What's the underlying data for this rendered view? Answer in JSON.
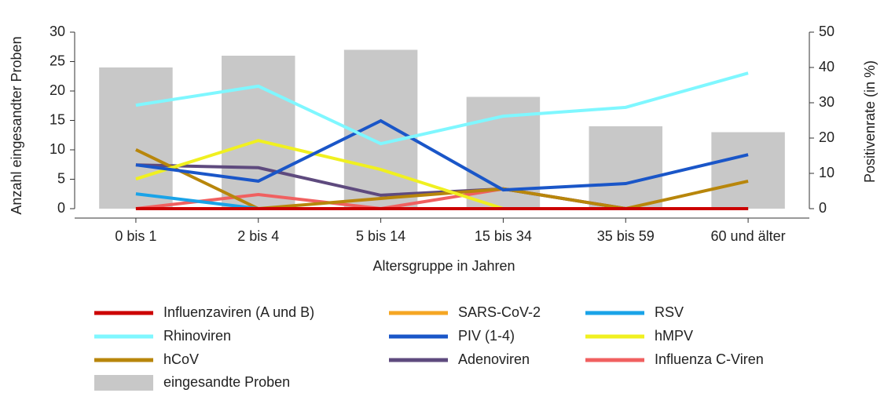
{
  "chart_data": {
    "type": "bar-line",
    "x_label": "Altersgruppe in Jahren",
    "y_label": "Anzahl eingesandter Proben",
    "y2_label": "Positivenrate (in %)",
    "categories": [
      "0 bis 1",
      "2 bis 4",
      "5 bis 14",
      "15 bis 34",
      "35 bis 59",
      "60 und älter"
    ],
    "ylim": [
      0,
      30
    ],
    "yticks": [
      0,
      5,
      10,
      15,
      20,
      25,
      30
    ],
    "y2lim": [
      0,
      50
    ],
    "y2ticks": [
      0,
      10,
      20,
      30,
      40,
      50
    ],
    "legend": "bottom",
    "series": [
      {
        "name": "Influenzaviren (A und B)",
        "color": "#cc0000",
        "axis": "y2",
        "kind": "line",
        "values": [
          0,
          0,
          0,
          0,
          0,
          0
        ]
      },
      {
        "name": "SARS-CoV-2",
        "color": "#f5a623",
        "axis": "y2",
        "kind": "line",
        "values": [
          0,
          0,
          0,
          0,
          0,
          0
        ]
      },
      {
        "name": "RSV",
        "color": "#1aa3e8",
        "axis": "y2",
        "kind": "line",
        "values": [
          4.2,
          0,
          0,
          0,
          0,
          0
        ]
      },
      {
        "name": "Rhinoviren",
        "color": "#7ff7ff",
        "axis": "y2",
        "kind": "line",
        "values": [
          29.3,
          34.7,
          18.4,
          26.2,
          28.7,
          38.4
        ]
      },
      {
        "name": "PIV (1-4)",
        "color": "#1a56c8",
        "axis": "y2",
        "kind": "line",
        "values": [
          12.4,
          7.8,
          24.9,
          5.3,
          7.1,
          15.3
        ]
      },
      {
        "name": "hMPV",
        "color": "#f0f020",
        "axis": "y2",
        "kind": "line",
        "values": [
          8.4,
          19.3,
          11.1,
          0,
          0,
          0
        ]
      },
      {
        "name": "hCoV",
        "color": "#b8860b",
        "axis": "y2",
        "kind": "line",
        "values": [
          16.7,
          0,
          2.9,
          5.6,
          0,
          7.8
        ]
      },
      {
        "name": "Adenoviren",
        "color": "#5e4a7e",
        "axis": "y2",
        "kind": "line",
        "values": [
          12.4,
          11.6,
          3.8,
          5.6,
          0,
          0
        ]
      },
      {
        "name": "Influenza C-Viren",
        "color": "#f06060",
        "axis": "y2",
        "kind": "line",
        "values": [
          0,
          4.0,
          0,
          5.6,
          0,
          0
        ]
      },
      {
        "name": "eingesandte Proben",
        "color": "#c8c8c8",
        "axis": "y",
        "kind": "bar",
        "values": [
          24,
          26,
          27,
          19,
          14,
          13
        ]
      }
    ]
  }
}
